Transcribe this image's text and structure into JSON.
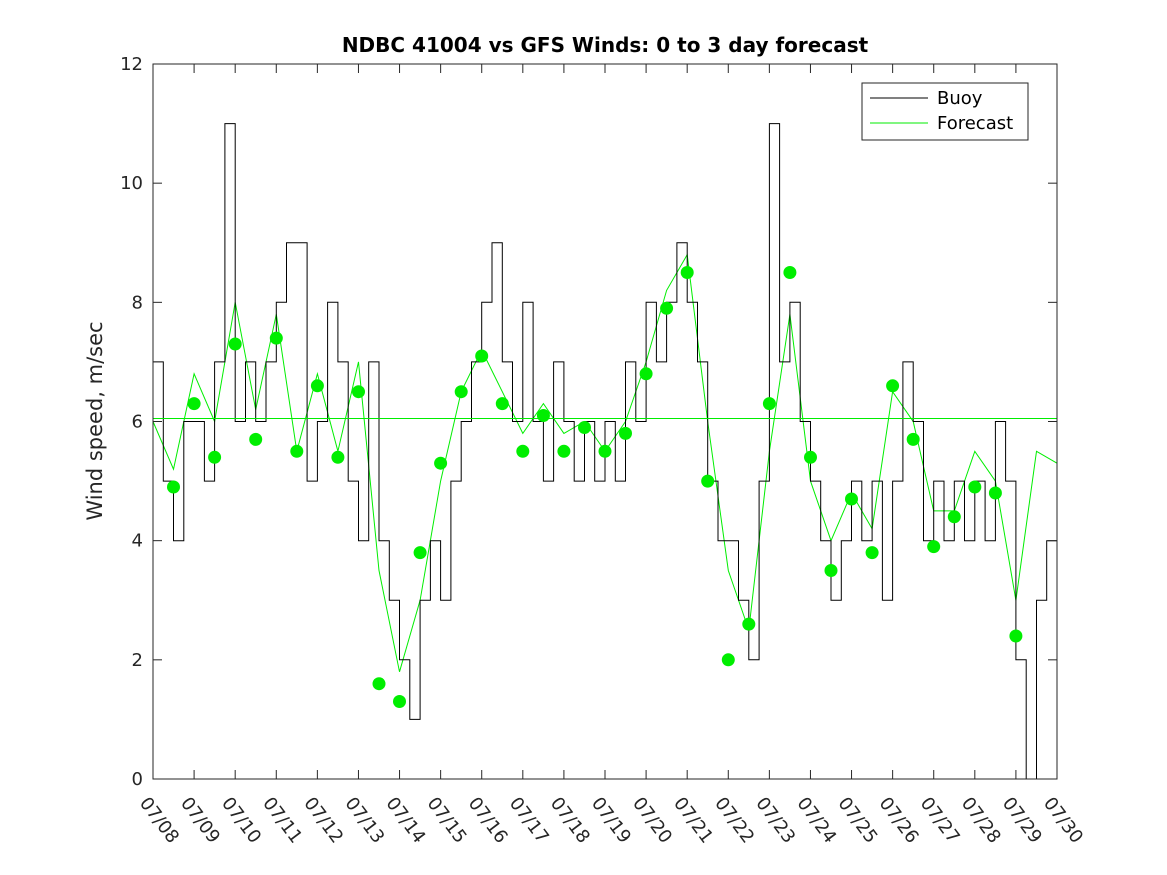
{
  "chart_data": {
    "type": "line",
    "title": "NDBC 41004 vs GFS Winds: 0 to 3 day forecast",
    "xlabel": "",
    "ylabel": "Wind speed, m/sec",
    "xlim": [
      "07/08",
      "07/30"
    ],
    "ylim": [
      0,
      12
    ],
    "x_ticks": [
      "07/08",
      "07/09",
      "07/10",
      "07/11",
      "07/12",
      "07/13",
      "07/14",
      "07/15",
      "07/16",
      "07/17",
      "07/18",
      "07/19",
      "07/20",
      "07/21",
      "07/22",
      "07/23",
      "07/24",
      "07/25",
      "07/26",
      "07/27",
      "07/28",
      "07/29",
      "07/30"
    ],
    "y_ticks": [
      0,
      2,
      4,
      6,
      8,
      10,
      12
    ],
    "grid": false,
    "legend": {
      "position": "top-right",
      "entries": [
        "Buoy",
        "Forecast"
      ]
    },
    "colors": {
      "buoy": "#000000",
      "forecast": "#00ee00",
      "markers": "#00ee00"
    },
    "series": [
      {
        "name": "Buoy",
        "style": "stairs",
        "x": [
          "07/08 00:00",
          "07/08 06:00",
          "07/08 12:00",
          "07/08 18:00",
          "07/09 00:00",
          "07/09 06:00",
          "07/09 12:00",
          "07/09 18:00",
          "07/10 00:00",
          "07/10 06:00",
          "07/10 12:00",
          "07/10 18:00",
          "07/11 00:00",
          "07/11 06:00",
          "07/11 12:00",
          "07/11 18:00",
          "07/12 00:00",
          "07/12 06:00",
          "07/12 12:00",
          "07/12 18:00",
          "07/13 00:00",
          "07/13 06:00",
          "07/13 12:00",
          "07/13 18:00",
          "07/14 00:00",
          "07/14 06:00",
          "07/14 12:00",
          "07/14 18:00",
          "07/15 00:00",
          "07/15 06:00",
          "07/15 12:00",
          "07/15 18:00",
          "07/16 00:00",
          "07/16 06:00",
          "07/16 12:00",
          "07/16 18:00",
          "07/17 00:00",
          "07/17 06:00",
          "07/17 12:00",
          "07/17 18:00",
          "07/18 00:00",
          "07/18 06:00",
          "07/18 12:00",
          "07/18 18:00",
          "07/19 00:00",
          "07/19 06:00",
          "07/19 12:00",
          "07/19 18:00",
          "07/20 00:00",
          "07/20 06:00",
          "07/20 12:00",
          "07/20 18:00",
          "07/21 00:00",
          "07/21 06:00",
          "07/21 12:00",
          "07/21 18:00",
          "07/22 00:00",
          "07/22 06:00",
          "07/22 12:00",
          "07/22 18:00",
          "07/23 00:00",
          "07/23 06:00",
          "07/23 12:00",
          "07/23 18:00",
          "07/24 00:00",
          "07/24 06:00",
          "07/24 12:00",
          "07/24 18:00",
          "07/25 00:00",
          "07/25 06:00",
          "07/25 12:00",
          "07/25 18:00",
          "07/26 00:00",
          "07/26 06:00",
          "07/26 12:00",
          "07/26 18:00",
          "07/27 00:00",
          "07/27 06:00",
          "07/27 12:00",
          "07/27 18:00",
          "07/28 00:00",
          "07/28 06:00",
          "07/28 12:00",
          "07/28 18:00",
          "07/29 00:00",
          "07/29 06:00",
          "07/29 12:00",
          "07/29 18:00",
          "07/30 00:00"
        ],
        "values": [
          7,
          5,
          4,
          6,
          6,
          5,
          7,
          11,
          6,
          7,
          6,
          7,
          8,
          9,
          9,
          5,
          6,
          8,
          7,
          5,
          4,
          7,
          4,
          3,
          2,
          1,
          3,
          4,
          3,
          5,
          6,
          7,
          8,
          9,
          7,
          6,
          8,
          6,
          5,
          7,
          6,
          5,
          6,
          5,
          6,
          5,
          7,
          6,
          8,
          7,
          8,
          9,
          8,
          7,
          5,
          4,
          4,
          3,
          2,
          5,
          11,
          7,
          8,
          6,
          5,
          4,
          3,
          4,
          5,
          4,
          5,
          3,
          5,
          7,
          6,
          4,
          5,
          4,
          5,
          4,
          5,
          4,
          6,
          5,
          2,
          0,
          3,
          4,
          4
        ]
      },
      {
        "name": "Forecast",
        "x": [
          "07/08 00:00",
          "07/08 12:00",
          "07/09 00:00",
          "07/09 12:00",
          "07/10 00:00",
          "07/10 12:00",
          "07/11 00:00",
          "07/11 12:00",
          "07/12 00:00",
          "07/12 12:00",
          "07/13 00:00",
          "07/13 12:00",
          "07/14 00:00",
          "07/14 12:00",
          "07/15 00:00",
          "07/15 12:00",
          "07/16 00:00",
          "07/16 12:00",
          "07/17 00:00",
          "07/17 12:00",
          "07/18 00:00",
          "07/18 12:00",
          "07/19 00:00",
          "07/19 12:00",
          "07/20 00:00",
          "07/20 12:00",
          "07/21 00:00",
          "07/21 12:00",
          "07/22 00:00",
          "07/22 12:00",
          "07/23 00:00",
          "07/23 12:00",
          "07/24 00:00",
          "07/24 12:00",
          "07/25 00:00",
          "07/25 12:00",
          "07/26 00:00",
          "07/26 12:00",
          "07/27 00:00",
          "07/27 12:00",
          "07/28 00:00",
          "07/28 12:00",
          "07/29 00:00",
          "07/29 12:00",
          "07/30 00:00"
        ],
        "values": [
          6.0,
          5.2,
          6.8,
          6.0,
          8.0,
          6.2,
          7.8,
          5.5,
          6.8,
          5.5,
          7.0,
          3.5,
          1.8,
          3.0,
          5.0,
          6.5,
          7.2,
          6.5,
          5.8,
          6.3,
          5.8,
          6.0,
          5.5,
          6.0,
          7.0,
          8.2,
          8.8,
          6.0,
          3.5,
          2.5,
          5.5,
          7.8,
          5.0,
          4.0,
          4.8,
          4.2,
          6.5,
          6.0,
          4.5,
          4.5,
          5.5,
          5.0,
          3.0,
          5.5,
          5.3
        ]
      }
    ],
    "markers": {
      "name": "Forecast",
      "x": [
        "07/08 12:00",
        "07/09 00:00",
        "07/09 12:00",
        "07/10 00:00",
        "07/10 12:00",
        "07/11 00:00",
        "07/11 12:00",
        "07/12 00:00",
        "07/12 12:00",
        "07/13 00:00",
        "07/13 12:00",
        "07/14 00:00",
        "07/14 12:00",
        "07/15 00:00",
        "07/15 12:00",
        "07/16 00:00",
        "07/16 12:00",
        "07/17 00:00",
        "07/17 12:00",
        "07/18 00:00",
        "07/18 12:00",
        "07/19 00:00",
        "07/19 12:00",
        "07/20 00:00",
        "07/20 12:00",
        "07/21 00:00",
        "07/21 12:00",
        "07/22 00:00",
        "07/22 12:00",
        "07/23 00:00",
        "07/23 12:00",
        "07/24 00:00",
        "07/24 12:00",
        "07/25 00:00",
        "07/25 12:00",
        "07/26 00:00",
        "07/26 12:00",
        "07/27 00:00",
        "07/27 12:00",
        "07/28 00:00",
        "07/28 12:00",
        "07/29 00:00",
        "07/29 12:00"
      ],
      "values": [
        4.9,
        6.3,
        5.4,
        7.3,
        5.7,
        7.4,
        5.5,
        6.6,
        5.4,
        6.5,
        1.6,
        1.3,
        3.8,
        5.3,
        6.5,
        7.1,
        6.3,
        5.5,
        6.1,
        5.5,
        5.9,
        5.5,
        5.8,
        6.8,
        7.9,
        8.5,
        5.0,
        2.0,
        2.6,
        6.3,
        8.5,
        5.4,
        3.5,
        4.7,
        3.8,
        6.6,
        5.7,
        3.9,
        4.4,
        4.9,
        4.8,
        2.4,
        null
      ]
    },
    "reference_line": {
      "y": 6.05
    }
  }
}
